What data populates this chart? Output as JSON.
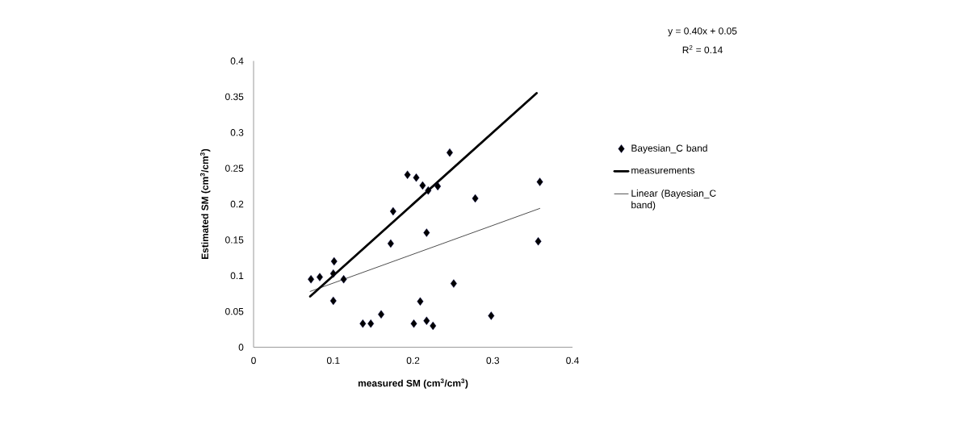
{
  "chart_data": {
    "type": "scatter",
    "xlabel": "measured SM (cm$^{3}$/cm$^{3}$)",
    "ylabel": "Estimated SM (cm$^{3}$/cm$^{3}$)",
    "annotations": [
      "y = 0.40x + 0.05",
      "R$^{2}$ = 0.14"
    ],
    "xlim": [
      0,
      0.4
    ],
    "xticks": [
      0,
      0.1,
      0.2,
      0.3,
      0.4
    ],
    "ylim": [
      0,
      0.4
    ],
    "yticks": [
      0,
      0.05,
      0.1,
      0.15,
      0.2,
      0.25,
      0.3,
      0.35,
      0.4
    ],
    "grid": false,
    "legend": "right",
    "series": [
      {
        "name": "Bayesian_C band",
        "color": "#000000",
        "marker": "diamond",
        "x": [
          0.072,
          0.083,
          0.101,
          0.1,
          0.113,
          0.1,
          0.175,
          0.172,
          0.16,
          0.137,
          0.147,
          0.246,
          0.193,
          0.204,
          0.212,
          0.219,
          0.231,
          0.359,
          0.278,
          0.217,
          0.357,
          0.251,
          0.209,
          0.201,
          0.217,
          0.225,
          0.298
        ],
        "values": [
          0.095,
          0.098,
          0.12,
          0.103,
          0.095,
          0.065,
          0.19,
          0.145,
          0.046,
          0.033,
          0.033,
          0.272,
          0.241,
          0.237,
          0.226,
          0.219,
          0.225,
          0.231,
          0.208,
          0.16,
          0.148,
          0.089,
          0.064,
          0.033,
          0.037,
          0.03,
          0.044
        ]
      },
      {
        "name": "measurements",
        "type": "line",
        "color": "#000000",
        "marker": "none",
        "x": [
          0.071,
          0.355
        ],
        "values": [
          0.071,
          0.355
        ]
      },
      {
        "name": "Linear (Bayesian_C band)",
        "type": "line",
        "color": "#000000",
        "marker": "none",
        "x": [
          0.071,
          0.359
        ],
        "values": [
          0.078,
          0.194
        ]
      }
    ]
  }
}
